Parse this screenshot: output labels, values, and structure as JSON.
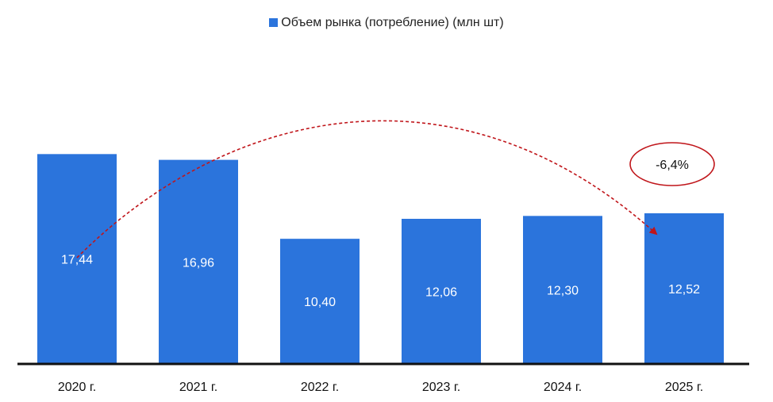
{
  "chart_data": {
    "type": "bar",
    "categories": [
      "2020 г.",
      "2021 г.",
      "2022 г.",
      "2023 г.",
      "2024 г.",
      "2025 г."
    ],
    "series": [
      {
        "name": "Объем рынка (потребление) (млн шт)",
        "values": [
          17.44,
          16.96,
          10.4,
          12.06,
          12.3,
          12.52
        ],
        "value_labels": [
          "17,44",
          "16,96",
          "10,40",
          "12,06",
          "12,30",
          "12,52"
        ]
      }
    ],
    "ylim": [
      0,
      25.5
    ],
    "grid": false,
    "legend_position": "top-center",
    "bar_color": "#2b74dc",
    "annotation": {
      "text": "-6,4%",
      "from_category": "2020 г.",
      "to_category": "2025 г.",
      "color": "#c0151a"
    }
  }
}
